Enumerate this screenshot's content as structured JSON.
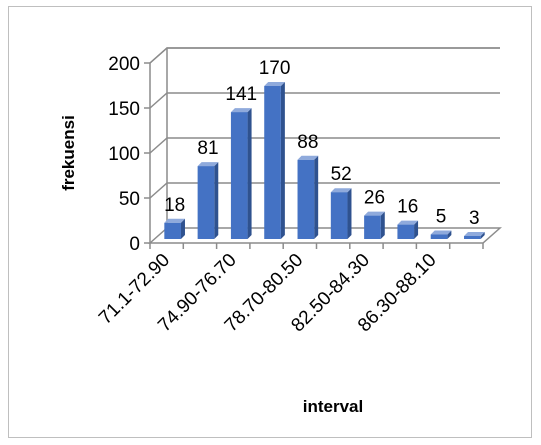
{
  "chart_data": {
    "type": "bar",
    "style": "3d-clustered-column",
    "title": "",
    "xlabel": "interval",
    "ylabel": "frekuensi",
    "ylim": [
      0,
      200
    ],
    "yticks": [
      "0",
      "50",
      "100",
      "150",
      "200"
    ],
    "categories": [
      "71.1-72.90",
      "",
      "74.90-76.70",
      "",
      "78.70-80.50",
      "",
      "82.50-84.30",
      "",
      "86.30-88.10",
      ""
    ],
    "values": [
      18,
      81,
      141,
      170,
      88,
      52,
      26,
      16,
      5,
      3
    ],
    "data_labels": [
      "18",
      "81",
      "141",
      "170",
      "88",
      "52",
      "26",
      "16",
      "5",
      "3"
    ],
    "grid": true,
    "legend": "none",
    "colors": {
      "bar_front": "#4472C4",
      "bar_side": "#2F528F",
      "bar_top": "#8FAADC",
      "grid": "#8c8c8c"
    }
  }
}
